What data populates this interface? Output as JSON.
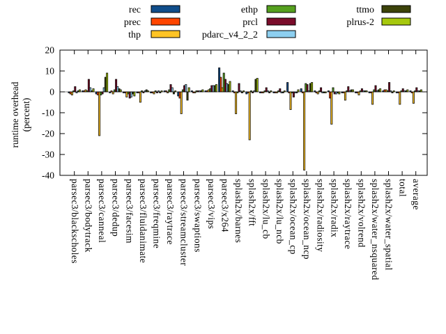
{
  "chart_data": {
    "type": "bar",
    "title": "",
    "ylabel_lines": [
      "runtime overhead",
      "(percent)"
    ],
    "ylim": [
      -40,
      20
    ],
    "yticks": [
      20,
      10,
      0,
      -10,
      -20,
      -30,
      -40
    ],
    "grid": false,
    "legend_position": "top",
    "bar_outline_color": "#000000",
    "categories": [
      "parsec3/blackscholes",
      "parsec3/bodytrack",
      "parsec3/canneal",
      "parsec3/dedup",
      "parsec3/facesim",
      "parsec3/fluidanimate",
      "parsec3/freqmine",
      "parsec3/raytrace",
      "parsec3/streamcluster",
      "parsec3/swaptions",
      "parsec3/vips",
      "parsec3/x264",
      "splash2x/barnes",
      "splash2x/fft",
      "splash2x/lu_cb",
      "splash2x/lu_ncb",
      "splash2x/ocean_cp",
      "splash2x/ocean_ncp",
      "splash2x/radiosity",
      "splash2x/radix",
      "splash2x/raytrace",
      "splash2x/volrend",
      "splash2x/water_nsquared",
      "splash2x/water_spatial",
      "total",
      "average"
    ],
    "series": [
      {
        "name": "rec",
        "color": "#104e8b",
        "values": [
          -0.5,
          0.5,
          -1,
          -0.5,
          -0.5,
          -0.5,
          -0.5,
          0.5,
          -2,
          0.5,
          0.5,
          11.5,
          0.5,
          -1,
          -0.5,
          -0.5,
          4.5,
          1.5,
          0.5,
          0.5,
          -0.5,
          -0.5,
          -0.5,
          0.5,
          -0.5,
          0.5
        ]
      },
      {
        "name": "prec",
        "color": "#ff4500",
        "values": [
          -1,
          0.5,
          -1.5,
          0.5,
          -0.5,
          -0.5,
          -0.5,
          0.5,
          -3,
          -0.5,
          0.5,
          7,
          -0.5,
          -0.5,
          -0.5,
          -0.5,
          -0.5,
          -0.5,
          -0.5,
          -3,
          -0.5,
          -0.5,
          -0.5,
          1,
          -0.5,
          -0.5
        ]
      },
      {
        "name": "thp",
        "color": "#ffc425",
        "values": [
          -1.5,
          1,
          -21,
          -1,
          -2.5,
          -5,
          -1,
          -0.5,
          -10.5,
          -0.5,
          1,
          2,
          -10.5,
          -23,
          -0.5,
          -0.5,
          -8.5,
          -37.5,
          -1,
          -15.5,
          -4,
          -1.5,
          -6,
          1,
          -6,
          -5.5
        ]
      },
      {
        "name": "ethp",
        "color": "#55a01e",
        "values": [
          0.5,
          0.5,
          -1.5,
          1,
          -1,
          0.5,
          0.5,
          1,
          1,
          0.5,
          1.5,
          9,
          -0.5,
          0.5,
          0.5,
          0.5,
          -0.5,
          4,
          0.5,
          2,
          0.5,
          0.5,
          1,
          0.5,
          0.5,
          0.5
        ]
      },
      {
        "name": "prcl",
        "color": "#7a0c2a",
        "values": [
          2.5,
          6,
          -1,
          6,
          -3,
          -0.5,
          -0.5,
          3.5,
          3,
          0.5,
          3,
          6,
          4,
          -0.5,
          2,
          1.5,
          -2.5,
          3.5,
          2,
          -1,
          2.5,
          1.5,
          3,
          4.5,
          1.5,
          2
        ]
      },
      {
        "name": "pdarc_v4_2_2",
        "color": "#8dcff0",
        "values": [
          -0.5,
          2,
          2,
          2.5,
          -2.5,
          0.5,
          0.5,
          2,
          3.5,
          0.5,
          3,
          4,
          0.5,
          0.5,
          0.5,
          -0.5,
          -0.5,
          0.5,
          -0.5,
          -1,
          0.5,
          0.5,
          0.5,
          0.5,
          0.5,
          0.5
        ]
      },
      {
        "name": "ttmo",
        "color": "#3c430a",
        "values": [
          0.5,
          0.5,
          7,
          1.5,
          -1,
          1,
          -0.5,
          -1,
          -4,
          0.5,
          3,
          3.5,
          -0.5,
          6,
          -0.5,
          -0.5,
          -0.5,
          4,
          -0.5,
          -0.5,
          1,
          0.5,
          1,
          -0.5,
          0.5,
          0.5
        ]
      },
      {
        "name": "plrus-2",
        "color": "#a6c80d",
        "values": [
          1,
          1.5,
          9,
          1,
          -2,
          0.5,
          0.5,
          0.5,
          2,
          1,
          3.5,
          5,
          0.5,
          6.5,
          0.5,
          0.5,
          1,
          4.5,
          -0.5,
          -1,
          1,
          0.5,
          1.5,
          0.5,
          1,
          1
        ]
      }
    ]
  }
}
